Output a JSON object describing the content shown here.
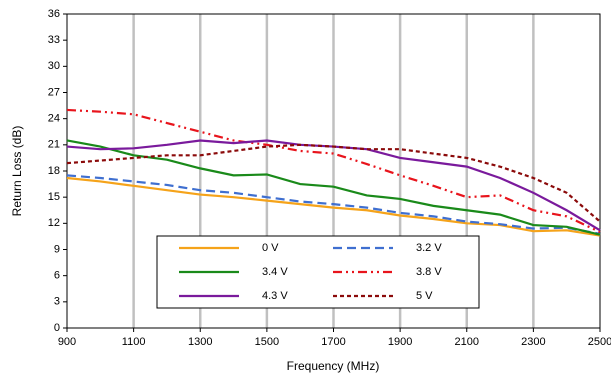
{
  "chart_data": {
    "type": "line",
    "x_label": "Frequency (MHz)",
    "y_label": "Return Loss (dB)",
    "x": [
      900,
      1000,
      1100,
      1200,
      1300,
      1400,
      1500,
      1600,
      1700,
      1800,
      1900,
      2000,
      2100,
      2200,
      2300,
      2400,
      2500
    ],
    "series": [
      {
        "name": "0 V",
        "color": "#f5a31a",
        "dash": "solid",
        "values": [
          17.2,
          16.8,
          16.3,
          15.8,
          15.3,
          15.0,
          14.6,
          14.2,
          13.8,
          13.5,
          12.9,
          12.5,
          12.0,
          11.8,
          11.1,
          11.2,
          10.6
        ]
      },
      {
        "name": "3.2 V",
        "color": "#3f6fd0",
        "dash": "dash",
        "values": [
          17.5,
          17.2,
          16.8,
          16.4,
          15.8,
          15.5,
          15.0,
          14.5,
          14.2,
          13.8,
          13.2,
          12.8,
          12.2,
          11.9,
          11.4,
          11.5,
          10.8
        ]
      },
      {
        "name": "3.4 V",
        "color": "#1a8a1a",
        "dash": "solid",
        "values": [
          21.5,
          20.8,
          19.8,
          19.3,
          18.3,
          17.5,
          17.6,
          16.5,
          16.2,
          15.2,
          14.8,
          14.0,
          13.5,
          13.0,
          11.8,
          11.6,
          10.7
        ]
      },
      {
        "name": "3.8 V",
        "color": "#e8141c",
        "dash": "dashdot",
        "values": [
          25.0,
          24.8,
          24.5,
          23.5,
          22.5,
          21.5,
          21.0,
          20.3,
          20.0,
          18.8,
          17.5,
          16.3,
          15.0,
          15.2,
          13.5,
          12.8,
          11.0
        ]
      },
      {
        "name": "4.3 V",
        "color": "#7a1a9c",
        "dash": "solid",
        "values": [
          20.8,
          20.5,
          20.6,
          21.0,
          21.5,
          21.2,
          21.5,
          21.0,
          20.8,
          20.5,
          19.5,
          19.0,
          18.5,
          17.2,
          15.5,
          13.5,
          11.2
        ]
      },
      {
        "name": "5 V",
        "color": "#8b0a0a",
        "dash": "dot",
        "values": [
          18.9,
          19.2,
          19.5,
          19.8,
          19.8,
          20.3,
          20.8,
          21.0,
          20.8,
          20.5,
          20.5,
          20.0,
          19.5,
          18.5,
          17.2,
          15.5,
          12.2
        ]
      }
    ],
    "xlim": [
      900,
      2500
    ],
    "xticks": [
      900,
      1100,
      1300,
      1500,
      1700,
      1900,
      2100,
      2300,
      2500
    ],
    "ylim": [
      0,
      36
    ],
    "yticks": [
      0,
      3,
      6,
      9,
      12,
      15,
      18,
      21,
      24,
      27,
      30,
      33,
      36
    ],
    "grid": "x"
  }
}
